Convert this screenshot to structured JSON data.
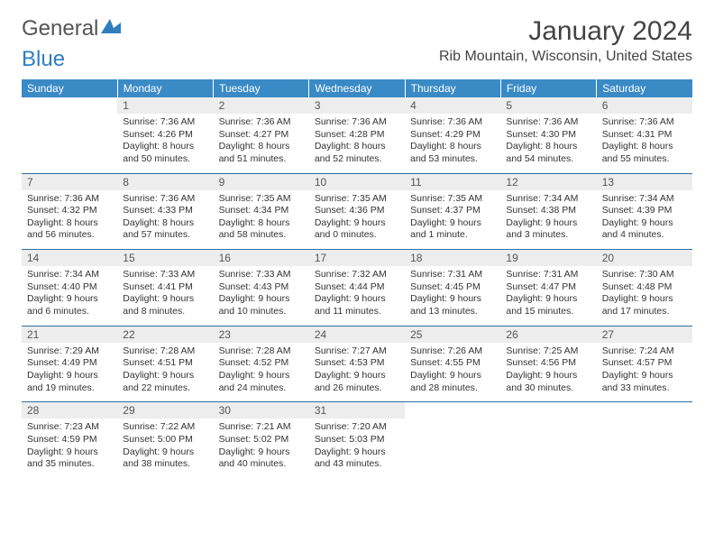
{
  "logo": {
    "text1": "General",
    "text2": "Blue"
  },
  "month_title": "January 2024",
  "location": "Rib Mountain, Wisconsin, United States",
  "colors": {
    "header_bg": "#3a8ac6",
    "header_text": "#ffffff",
    "daynum_bg": "#ededed",
    "row_border": "#2f6fa0",
    "logo_gray": "#555555",
    "logo_blue": "#2f7fbf"
  },
  "days_of_week": [
    "Sunday",
    "Monday",
    "Tuesday",
    "Wednesday",
    "Thursday",
    "Friday",
    "Saturday"
  ],
  "weeks": [
    [
      null,
      {
        "n": "1",
        "sr": "7:36 AM",
        "ss": "4:26 PM",
        "dl": "8 hours and 50 minutes."
      },
      {
        "n": "2",
        "sr": "7:36 AM",
        "ss": "4:27 PM",
        "dl": "8 hours and 51 minutes."
      },
      {
        "n": "3",
        "sr": "7:36 AM",
        "ss": "4:28 PM",
        "dl": "8 hours and 52 minutes."
      },
      {
        "n": "4",
        "sr": "7:36 AM",
        "ss": "4:29 PM",
        "dl": "8 hours and 53 minutes."
      },
      {
        "n": "5",
        "sr": "7:36 AM",
        "ss": "4:30 PM",
        "dl": "8 hours and 54 minutes."
      },
      {
        "n": "6",
        "sr": "7:36 AM",
        "ss": "4:31 PM",
        "dl": "8 hours and 55 minutes."
      }
    ],
    [
      {
        "n": "7",
        "sr": "7:36 AM",
        "ss": "4:32 PM",
        "dl": "8 hours and 56 minutes."
      },
      {
        "n": "8",
        "sr": "7:36 AM",
        "ss": "4:33 PM",
        "dl": "8 hours and 57 minutes."
      },
      {
        "n": "9",
        "sr": "7:35 AM",
        "ss": "4:34 PM",
        "dl": "8 hours and 58 minutes."
      },
      {
        "n": "10",
        "sr": "7:35 AM",
        "ss": "4:36 PM",
        "dl": "9 hours and 0 minutes."
      },
      {
        "n": "11",
        "sr": "7:35 AM",
        "ss": "4:37 PM",
        "dl": "9 hours and 1 minute."
      },
      {
        "n": "12",
        "sr": "7:34 AM",
        "ss": "4:38 PM",
        "dl": "9 hours and 3 minutes."
      },
      {
        "n": "13",
        "sr": "7:34 AM",
        "ss": "4:39 PM",
        "dl": "9 hours and 4 minutes."
      }
    ],
    [
      {
        "n": "14",
        "sr": "7:34 AM",
        "ss": "4:40 PM",
        "dl": "9 hours and 6 minutes."
      },
      {
        "n": "15",
        "sr": "7:33 AM",
        "ss": "4:41 PM",
        "dl": "9 hours and 8 minutes."
      },
      {
        "n": "16",
        "sr": "7:33 AM",
        "ss": "4:43 PM",
        "dl": "9 hours and 10 minutes."
      },
      {
        "n": "17",
        "sr": "7:32 AM",
        "ss": "4:44 PM",
        "dl": "9 hours and 11 minutes."
      },
      {
        "n": "18",
        "sr": "7:31 AM",
        "ss": "4:45 PM",
        "dl": "9 hours and 13 minutes."
      },
      {
        "n": "19",
        "sr": "7:31 AM",
        "ss": "4:47 PM",
        "dl": "9 hours and 15 minutes."
      },
      {
        "n": "20",
        "sr": "7:30 AM",
        "ss": "4:48 PM",
        "dl": "9 hours and 17 minutes."
      }
    ],
    [
      {
        "n": "21",
        "sr": "7:29 AM",
        "ss": "4:49 PM",
        "dl": "9 hours and 19 minutes."
      },
      {
        "n": "22",
        "sr": "7:28 AM",
        "ss": "4:51 PM",
        "dl": "9 hours and 22 minutes."
      },
      {
        "n": "23",
        "sr": "7:28 AM",
        "ss": "4:52 PM",
        "dl": "9 hours and 24 minutes."
      },
      {
        "n": "24",
        "sr": "7:27 AM",
        "ss": "4:53 PM",
        "dl": "9 hours and 26 minutes."
      },
      {
        "n": "25",
        "sr": "7:26 AM",
        "ss": "4:55 PM",
        "dl": "9 hours and 28 minutes."
      },
      {
        "n": "26",
        "sr": "7:25 AM",
        "ss": "4:56 PM",
        "dl": "9 hours and 30 minutes."
      },
      {
        "n": "27",
        "sr": "7:24 AM",
        "ss": "4:57 PM",
        "dl": "9 hours and 33 minutes."
      }
    ],
    [
      {
        "n": "28",
        "sr": "7:23 AM",
        "ss": "4:59 PM",
        "dl": "9 hours and 35 minutes."
      },
      {
        "n": "29",
        "sr": "7:22 AM",
        "ss": "5:00 PM",
        "dl": "9 hours and 38 minutes."
      },
      {
        "n": "30",
        "sr": "7:21 AM",
        "ss": "5:02 PM",
        "dl": "9 hours and 40 minutes."
      },
      {
        "n": "31",
        "sr": "7:20 AM",
        "ss": "5:03 PM",
        "dl": "9 hours and 43 minutes."
      },
      null,
      null,
      null
    ]
  ],
  "labels": {
    "sunrise": "Sunrise:",
    "sunset": "Sunset:",
    "daylight": "Daylight:"
  }
}
